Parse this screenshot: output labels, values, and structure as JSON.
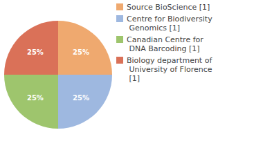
{
  "chart_data": {
    "type": "pie",
    "categories": [
      "Source BioScience [1]",
      "Centre for Biodiversity Genomics [1]",
      "Canadian Centre for DNA Barcoding [1]",
      "Biology department of University of Florence [1]"
    ],
    "values": [
      25,
      25,
      25,
      25
    ],
    "value_labels": [
      "25%",
      "25%",
      "25%",
      "25%"
    ],
    "colors": [
      "#efa96f",
      "#9eb8e0",
      "#9ec56d",
      "#da7158"
    ],
    "data_labels": true,
    "legend": "right"
  }
}
